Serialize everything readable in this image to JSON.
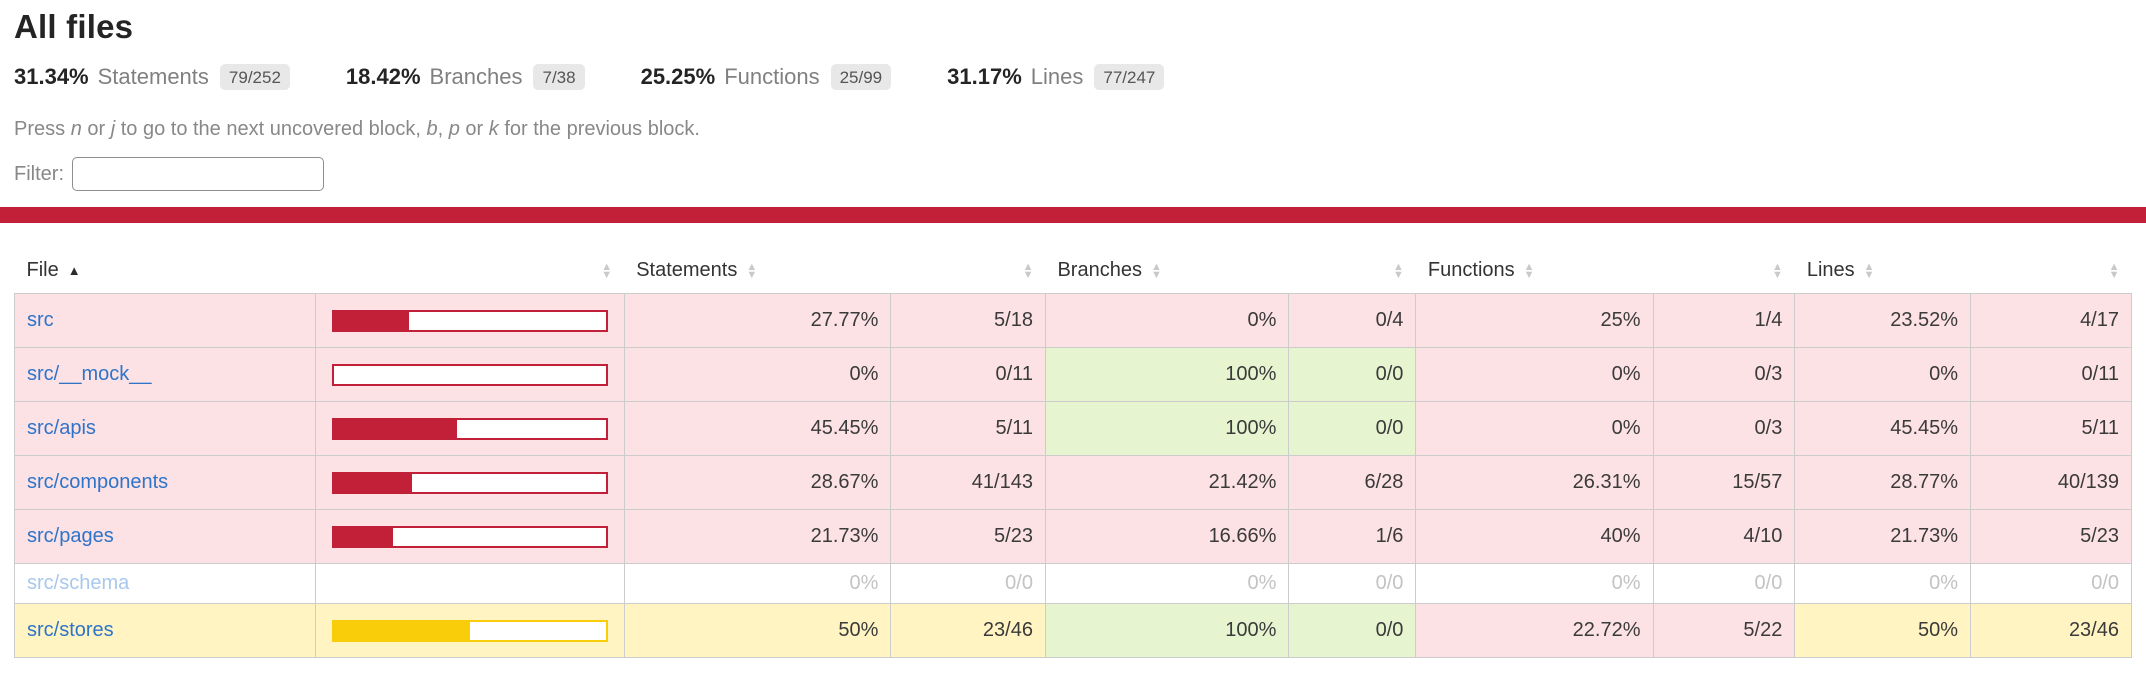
{
  "header": {
    "title": "All files",
    "metrics": [
      {
        "pct": "31.34%",
        "label": "Statements",
        "ratio": "79/252"
      },
      {
        "pct": "18.42%",
        "label": "Branches",
        "ratio": "7/38"
      },
      {
        "pct": "25.25%",
        "label": "Functions",
        "ratio": "25/99"
      },
      {
        "pct": "31.17%",
        "label": "Lines",
        "ratio": "77/247"
      }
    ]
  },
  "hint_segments": [
    {
      "text": "Press "
    },
    {
      "text": "n",
      "italic": true
    },
    {
      "text": " or "
    },
    {
      "text": "j",
      "italic": true
    },
    {
      "text": " to go to the next uncovered block, "
    },
    {
      "text": "b",
      "italic": true
    },
    {
      "text": ", "
    },
    {
      "text": "p",
      "italic": true
    },
    {
      "text": " or "
    },
    {
      "text": "k",
      "italic": true
    },
    {
      "text": " for the previous block."
    }
  ],
  "filter": {
    "label": "Filter:",
    "value": "",
    "placeholder": ""
  },
  "icons": {
    "sort_asc_icon": "▲",
    "caret_up": "▲",
    "caret_down": "▼"
  },
  "table": {
    "header": {
      "file": "File",
      "statements": "Statements",
      "branches": "Branches",
      "functions": "Functions",
      "lines": "Lines"
    },
    "sorted_column": "File",
    "sort_direction": "asc",
    "rows": [
      {
        "file": "src",
        "level": "low",
        "bar": {
          "pct": 27.77,
          "level": "low"
        },
        "metrics": {
          "statements": {
            "pct": "27.77%",
            "ratio": "5/18",
            "level": "low"
          },
          "branches": {
            "pct": "0%",
            "ratio": "0/4",
            "level": "low"
          },
          "functions": {
            "pct": "25%",
            "ratio": "1/4",
            "level": "low"
          },
          "lines": {
            "pct": "23.52%",
            "ratio": "4/17",
            "level": "low"
          }
        }
      },
      {
        "file": "src/__mock__",
        "level": "low",
        "bar": {
          "pct": 0,
          "level": "low"
        },
        "metrics": {
          "statements": {
            "pct": "0%",
            "ratio": "0/11",
            "level": "low"
          },
          "branches": {
            "pct": "100%",
            "ratio": "0/0",
            "level": "high"
          },
          "functions": {
            "pct": "0%",
            "ratio": "0/3",
            "level": "low"
          },
          "lines": {
            "pct": "0%",
            "ratio": "0/11",
            "level": "low"
          }
        }
      },
      {
        "file": "src/apis",
        "level": "low",
        "bar": {
          "pct": 45.45,
          "level": "low"
        },
        "metrics": {
          "statements": {
            "pct": "45.45%",
            "ratio": "5/11",
            "level": "low"
          },
          "branches": {
            "pct": "100%",
            "ratio": "0/0",
            "level": "high"
          },
          "functions": {
            "pct": "0%",
            "ratio": "0/3",
            "level": "low"
          },
          "lines": {
            "pct": "45.45%",
            "ratio": "5/11",
            "level": "low"
          }
        }
      },
      {
        "file": "src/components",
        "level": "low",
        "bar": {
          "pct": 28.67,
          "level": "low"
        },
        "metrics": {
          "statements": {
            "pct": "28.67%",
            "ratio": "41/143",
            "level": "low"
          },
          "branches": {
            "pct": "21.42%",
            "ratio": "6/28",
            "level": "low"
          },
          "functions": {
            "pct": "26.31%",
            "ratio": "15/57",
            "level": "low"
          },
          "lines": {
            "pct": "28.77%",
            "ratio": "40/139",
            "level": "low"
          }
        }
      },
      {
        "file": "src/pages",
        "level": "low",
        "bar": {
          "pct": 21.73,
          "level": "low"
        },
        "metrics": {
          "statements": {
            "pct": "21.73%",
            "ratio": "5/23",
            "level": "low"
          },
          "branches": {
            "pct": "16.66%",
            "ratio": "1/6",
            "level": "low"
          },
          "functions": {
            "pct": "40%",
            "ratio": "4/10",
            "level": "low"
          },
          "lines": {
            "pct": "21.73%",
            "ratio": "5/23",
            "level": "low"
          }
        }
      },
      {
        "file": "src/schema",
        "level": "empty",
        "bar": null,
        "metrics": {
          "statements": {
            "pct": "0%",
            "ratio": "0/0",
            "level": "empty"
          },
          "branches": {
            "pct": "0%",
            "ratio": "0/0",
            "level": "empty"
          },
          "functions": {
            "pct": "0%",
            "ratio": "0/0",
            "level": "empty"
          },
          "lines": {
            "pct": "0%",
            "ratio": "0/0",
            "level": "empty"
          }
        }
      },
      {
        "file": "src/stores",
        "level": "medium",
        "bar": {
          "pct": 50,
          "level": "medium"
        },
        "metrics": {
          "statements": {
            "pct": "50%",
            "ratio": "23/46",
            "level": "medium"
          },
          "branches": {
            "pct": "100%",
            "ratio": "0/0",
            "level": "high"
          },
          "functions": {
            "pct": "22.72%",
            "ratio": "5/22",
            "level": "low"
          },
          "lines": {
            "pct": "50%",
            "ratio": "23/46",
            "level": "medium"
          }
        }
      }
    ]
  },
  "colors": {
    "accent": "#C21F39",
    "low_bg": "#FCE1E5",
    "high_bg": "#E6F5D0",
    "medium_bg": "#FFF4C2",
    "medium_fill": "#F9CD0A",
    "link": "#2E74C9",
    "link_faded": "#A8C8EC",
    "badge_bg": "#E8E8E8"
  }
}
